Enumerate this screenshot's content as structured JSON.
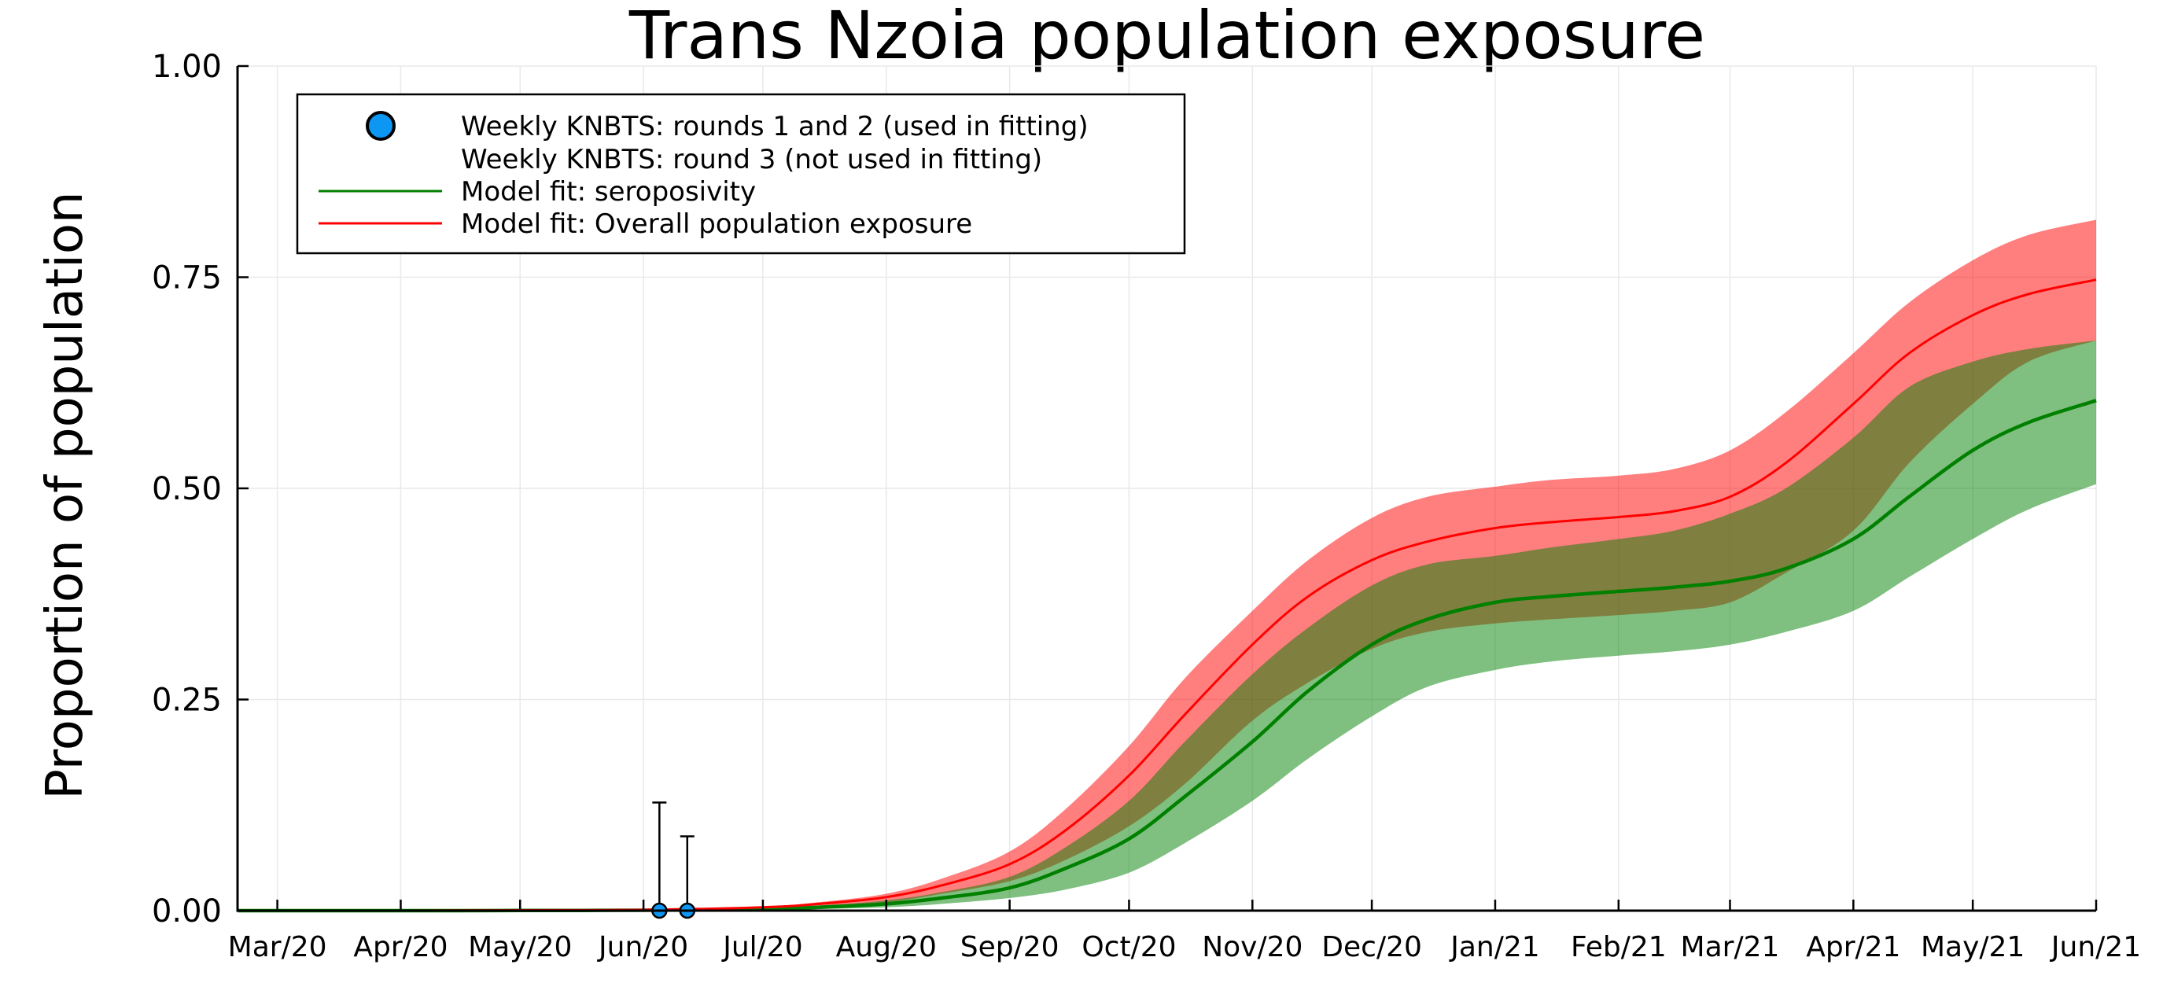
{
  "chart_data": {
    "type": "line",
    "title": "Trans Nzoia population exposure",
    "ylabel": "Proportion of population",
    "xlabel": "",
    "ylim": [
      0,
      1
    ],
    "yticks": [
      0,
      0.25,
      0.5,
      0.75,
      1
    ],
    "ytick_labels": [
      "0.00",
      "0.25",
      "0.50",
      "0.75",
      "1.00"
    ],
    "xlim": [
      "2020-02-20",
      "2021-06-01"
    ],
    "xticks": [
      "2020-03-01",
      "2020-04-01",
      "2020-05-01",
      "2020-06-01",
      "2020-07-01",
      "2020-08-01",
      "2020-09-01",
      "2020-10-01",
      "2020-11-01",
      "2020-12-01",
      "2021-01-01",
      "2021-02-01",
      "2021-03-01",
      "2021-04-01",
      "2021-05-01",
      "2021-06-01"
    ],
    "xtick_labels": [
      "Mar/20",
      "Apr/20",
      "May/20",
      "Jun/20",
      "Jul/20",
      "Aug/20",
      "Sep/20",
      "Oct/20",
      "Nov/20",
      "Dec/20",
      "Jan/21",
      "Feb/21",
      "Mar/21",
      "Apr/21",
      "May/21",
      "Jun/21"
    ],
    "grid": true,
    "legend_position": "top-left",
    "legend": [
      {
        "label": "Weekly KNBTS: rounds 1 and 2 (used in fitting)",
        "marker": "circle",
        "color": "#0d96f2"
      },
      {
        "label": "Weekly KNBTS: round 3 (not used in fitting)",
        "marker": "none",
        "color": ""
      },
      {
        "label": "Model fit: seroposivity",
        "marker": "line",
        "color": "#008000"
      },
      {
        "label": "Model fit: Overall population exposure",
        "marker": "line",
        "color": "#ff0000"
      }
    ],
    "series": [
      {
        "name": "Model fit: Overall population exposure",
        "color": "#ff0000",
        "band_color": "#ff0000",
        "x": [
          "2020-02-20",
          "2020-03-01",
          "2020-04-01",
          "2020-05-01",
          "2020-06-01",
          "2020-07-01",
          "2020-07-15",
          "2020-08-01",
          "2020-08-15",
          "2020-09-01",
          "2020-09-15",
          "2020-10-01",
          "2020-10-15",
          "2020-11-01",
          "2020-11-15",
          "2020-12-01",
          "2020-12-15",
          "2021-01-01",
          "2021-01-15",
          "2021-02-01",
          "2021-02-15",
          "2021-03-01",
          "2021-03-15",
          "2021-04-01",
          "2021-04-15",
          "2021-05-01",
          "2021-05-15",
          "2021-06-01"
        ],
        "y": [
          0.0,
          0.0,
          0.0,
          0.0005,
          0.001,
          0.004,
          0.008,
          0.016,
          0.03,
          0.055,
          0.095,
          0.16,
          0.232,
          0.315,
          0.372,
          0.415,
          0.437,
          0.453,
          0.46,
          0.466,
          0.473,
          0.49,
          0.53,
          0.6,
          0.66,
          0.705,
          0.73,
          0.747
        ],
        "lower": [
          0.0,
          0.0,
          0.0,
          0.0004,
          0.0008,
          0.002,
          0.005,
          0.01,
          0.02,
          0.035,
          0.06,
          0.1,
          0.15,
          0.225,
          0.27,
          0.31,
          0.33,
          0.34,
          0.345,
          0.35,
          0.355,
          0.365,
          0.4,
          0.45,
          0.53,
          0.6,
          0.65,
          0.675
        ],
        "upper": [
          0.0,
          0.0,
          0.0,
          0.0006,
          0.0012,
          0.005,
          0.01,
          0.02,
          0.038,
          0.07,
          0.12,
          0.195,
          0.275,
          0.355,
          0.415,
          0.465,
          0.49,
          0.502,
          0.51,
          0.515,
          0.523,
          0.545,
          0.59,
          0.66,
          0.72,
          0.77,
          0.8,
          0.818
        ]
      },
      {
        "name": "Model fit: seroposivity",
        "color": "#008000",
        "band_color": "#008000",
        "x": [
          "2020-02-20",
          "2020-03-01",
          "2020-04-01",
          "2020-05-01",
          "2020-06-01",
          "2020-07-01",
          "2020-07-15",
          "2020-08-01",
          "2020-08-15",
          "2020-09-01",
          "2020-09-15",
          "2020-10-01",
          "2020-10-15",
          "2020-11-01",
          "2020-11-15",
          "2020-12-01",
          "2020-12-15",
          "2021-01-01",
          "2021-01-15",
          "2021-02-01",
          "2021-02-15",
          "2021-03-01",
          "2021-03-15",
          "2021-04-01",
          "2021-04-15",
          "2021-05-01",
          "2021-05-15",
          "2021-06-01"
        ],
        "y": [
          0.0,
          0.0,
          0.0,
          0.0002,
          0.0005,
          0.002,
          0.004,
          0.008,
          0.015,
          0.027,
          0.05,
          0.085,
          0.135,
          0.2,
          0.26,
          0.315,
          0.345,
          0.365,
          0.372,
          0.378,
          0.383,
          0.39,
          0.405,
          0.44,
          0.49,
          0.545,
          0.578,
          0.604
        ],
        "lower": [
          0.0,
          0.0,
          0.0,
          0.0001,
          0.0002,
          0.001,
          0.002,
          0.004,
          0.008,
          0.015,
          0.025,
          0.045,
          0.08,
          0.13,
          0.18,
          0.23,
          0.265,
          0.285,
          0.295,
          0.302,
          0.307,
          0.315,
          0.33,
          0.355,
          0.395,
          0.44,
          0.475,
          0.505
        ],
        "upper": [
          0.0,
          0.0,
          0.0,
          0.0003,
          0.0008,
          0.003,
          0.006,
          0.012,
          0.022,
          0.04,
          0.075,
          0.13,
          0.2,
          0.28,
          0.335,
          0.385,
          0.41,
          0.42,
          0.43,
          0.44,
          0.45,
          0.47,
          0.5,
          0.56,
          0.62,
          0.65,
          0.665,
          0.675
        ]
      }
    ],
    "points": {
      "name": "Weekly KNBTS: rounds 1 and 2 (used in fitting)",
      "color": "#0d96f2",
      "x": [
        "2020-06-05",
        "2020-06-12"
      ],
      "y": [
        0.0,
        0.0
      ],
      "err_low": [
        0.0,
        0.0
      ],
      "err_high": [
        0.128,
        0.088
      ]
    }
  }
}
